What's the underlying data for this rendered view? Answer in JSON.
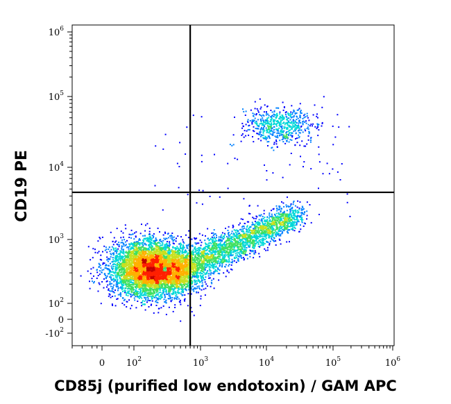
{
  "chart_data": {
    "type": "scatter",
    "subtype": "flow-cytometry-density-dot-plot",
    "xlabel": "CD85j (purified low endotoxin) / GAM APC",
    "ylabel": "CD19 PE",
    "x_scale": "biexponential",
    "y_scale": "biexponential",
    "xlim": [
      -300,
      1200000
    ],
    "ylim": [
      -200,
      1200000
    ],
    "x_ticks": [
      {
        "value": 0,
        "base": "0",
        "exp": ""
      },
      {
        "value": 100,
        "base": "10",
        "exp": "2"
      },
      {
        "value": 1000,
        "base": "10",
        "exp": "3"
      },
      {
        "value": 10000,
        "base": "10",
        "exp": "4"
      },
      {
        "value": 100000,
        "base": "10",
        "exp": "5"
      },
      {
        "value": 1000000,
        "base": "10",
        "exp": "6"
      }
    ],
    "y_ticks": [
      {
        "value": -100,
        "base": "-10",
        "exp": "2"
      },
      {
        "value": 0,
        "base": "0",
        "exp": ""
      },
      {
        "value": 100,
        "base": "10",
        "exp": "2"
      },
      {
        "value": 1000,
        "base": "10",
        "exp": "3"
      },
      {
        "value": 10000,
        "base": "10",
        "exp": "4"
      },
      {
        "value": 100000,
        "base": "10",
        "exp": "5"
      },
      {
        "value": 1000000,
        "base": "10",
        "exp": "6"
      }
    ],
    "quadrant_gate": {
      "x": 700,
      "y": 4500
    },
    "populations": [
      {
        "label": "CD19-negative / CD85j-negative cluster",
        "x_center": 180,
        "y_center": 350,
        "relative_density": "very high",
        "approx_share": 0.58
      },
      {
        "label": "CD19-negative / CD85j-positive streak",
        "x_center": 2500,
        "y_center": 700,
        "relative_density": "medium",
        "approx_share": 0.3
      },
      {
        "label": "CD19-positive / CD85j-positive cluster",
        "x_center": 15000,
        "y_center": 40000,
        "relative_density": "low",
        "approx_share": 0.1
      }
    ],
    "colormap": [
      "#00007f",
      "#0000ff",
      "#0080ff",
      "#00d8d8",
      "#40e060",
      "#c8e020",
      "#ffb000",
      "#ff2000",
      "#c00000"
    ],
    "grid": false,
    "legend": "none"
  }
}
